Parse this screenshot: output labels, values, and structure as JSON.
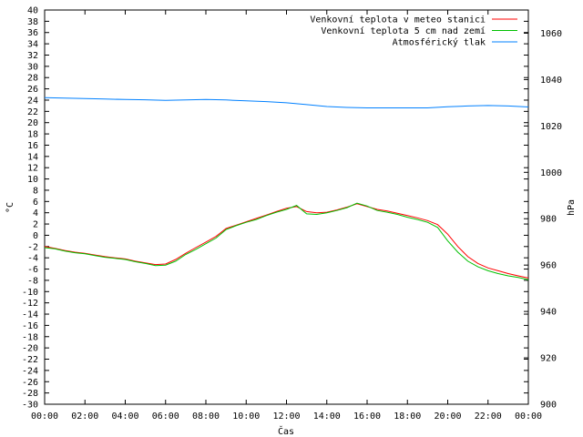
{
  "chart_data": {
    "type": "line",
    "xlabel": "Čas",
    "ylabel": "°C",
    "y2label": "hPa",
    "x_ticks": [
      "00:00",
      "02:00",
      "04:00",
      "06:00",
      "08:00",
      "10:00",
      "12:00",
      "14:00",
      "16:00",
      "18:00",
      "20:00",
      "22:00",
      "00:00"
    ],
    "xlim": [
      0,
      24
    ],
    "ylim": [
      -30,
      40
    ],
    "y_step": 2,
    "y2lim": [
      900,
      1070
    ],
    "y2_ticks": [
      900,
      920,
      940,
      960,
      980,
      1000,
      1020,
      1040,
      1060
    ],
    "grid": false,
    "legend_position": "top-right",
    "series": [
      {
        "name": "Venkovní teplota v meteo stanici",
        "color": "#ff0000",
        "axis": "left",
        "x": [
          0,
          0.5,
          1,
          1.5,
          2,
          2.5,
          3,
          3.5,
          4,
          4.5,
          5,
          5.5,
          6,
          6.5,
          7,
          7.5,
          8,
          8.5,
          9,
          9.5,
          10,
          10.5,
          11,
          11.5,
          12,
          12.5,
          13,
          13.5,
          14,
          14.5,
          15,
          15.5,
          16,
          16.5,
          17,
          17.5,
          18,
          18.5,
          19,
          19.5,
          20,
          20.5,
          21,
          21.5,
          22,
          22.5,
          23,
          23.5,
          24
        ],
        "values": [
          -2.0,
          -2.3,
          -2.7,
          -3.0,
          -3.2,
          -3.5,
          -3.8,
          -4.0,
          -4.2,
          -4.6,
          -4.9,
          -5.2,
          -5.1,
          -4.3,
          -3.2,
          -2.2,
          -1.2,
          -0.2,
          1.2,
          1.8,
          2.4,
          3.0,
          3.6,
          4.2,
          4.8,
          5.1,
          4.2,
          4.0,
          4.1,
          4.5,
          5.0,
          5.6,
          5.1,
          4.6,
          4.3,
          3.9,
          3.5,
          3.1,
          2.6,
          1.9,
          0.2,
          -2.0,
          -3.8,
          -5.0,
          -5.8,
          -6.3,
          -6.8,
          -7.2,
          -7.6
        ]
      },
      {
        "name": "Venkovní teplota 5 cm nad zemí",
        "color": "#00c000",
        "axis": "left",
        "x": [
          0,
          0.5,
          1,
          1.5,
          2,
          2.5,
          3,
          3.5,
          4,
          4.5,
          5,
          5.5,
          6,
          6.5,
          7,
          7.5,
          8,
          8.5,
          9,
          9.5,
          10,
          10.5,
          11,
          11.5,
          12,
          12.5,
          13,
          13.5,
          14,
          14.5,
          15,
          15.5,
          16,
          16.5,
          17,
          17.5,
          18,
          18.5,
          19,
          19.5,
          20,
          20.5,
          21,
          21.5,
          22,
          22.5,
          23,
          23.5,
          24
        ],
        "values": [
          -2.2,
          -2.4,
          -2.8,
          -3.1,
          -3.3,
          -3.6,
          -3.9,
          -4.1,
          -4.3,
          -4.7,
          -5.0,
          -5.4,
          -5.3,
          -4.6,
          -3.4,
          -2.5,
          -1.5,
          -0.5,
          1.0,
          1.7,
          2.3,
          2.8,
          3.5,
          4.1,
          4.6,
          5.3,
          3.8,
          3.7,
          4.0,
          4.4,
          4.9,
          5.7,
          5.2,
          4.4,
          4.1,
          3.7,
          3.2,
          2.8,
          2.3,
          1.4,
          -1.0,
          -3.0,
          -4.6,
          -5.6,
          -6.3,
          -6.8,
          -7.2,
          -7.5,
          -7.9
        ]
      },
      {
        "name": "Atmosférický tlak",
        "color": "#0080ff",
        "axis": "right",
        "x": [
          0,
          1,
          2,
          3,
          4,
          5,
          6,
          7,
          8,
          9,
          10,
          11,
          12,
          13,
          14,
          15,
          16,
          17,
          18,
          19,
          20,
          21,
          22,
          23,
          24
        ],
        "values": [
          1032.2,
          1032.0,
          1031.8,
          1031.6,
          1031.4,
          1031.3,
          1031.0,
          1031.2,
          1031.4,
          1031.2,
          1030.8,
          1030.5,
          1030.0,
          1029.2,
          1028.4,
          1028.0,
          1027.8,
          1027.8,
          1027.8,
          1027.8,
          1028.3,
          1028.6,
          1028.8,
          1028.6,
          1028.2
        ]
      }
    ]
  }
}
